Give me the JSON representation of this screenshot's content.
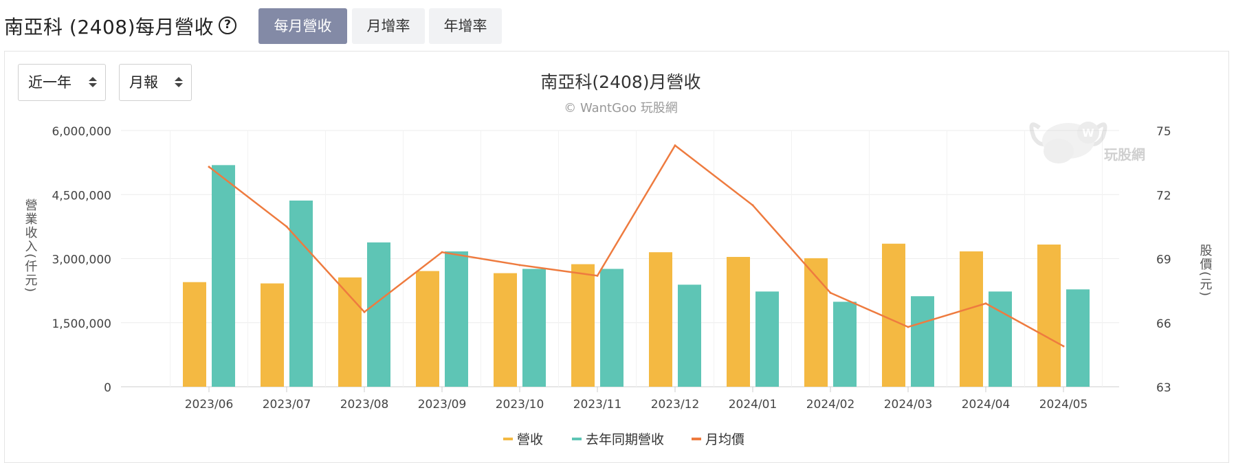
{
  "header": {
    "title": "南亞科 (2408)每月營收",
    "tabs": [
      {
        "label": "每月營收",
        "active": true
      },
      {
        "label": "月增率",
        "active": false
      },
      {
        "label": "年增率",
        "active": false
      }
    ]
  },
  "controls": {
    "period": "近一年",
    "report": "月報"
  },
  "watermark": "玩股網",
  "colors": {
    "revenue": "#f4b942",
    "last_year": "#5ec5b5",
    "price": "#ee7b3f",
    "tab_active": "#838aa6"
  },
  "chart_data": {
    "type": "bar",
    "title": "南亞科(2408)月營收",
    "subtitle": "© WantGoo 玩股網",
    "ylabel": "營業收入(仟元)",
    "y2label": "股價(元)",
    "ylim": [
      0,
      6000000
    ],
    "y2lim": [
      63,
      75
    ],
    "yticks": [
      "6,000,000",
      "4,500,000",
      "3,000,000",
      "1,500,000",
      "0"
    ],
    "y2ticks": [
      "75",
      "72",
      "69",
      "66",
      "63"
    ],
    "categories": [
      "2023/06",
      "2023/07",
      "2023/08",
      "2023/09",
      "2023/10",
      "2023/11",
      "2023/12",
      "2024/01",
      "2024/02",
      "2024/03",
      "2024/04",
      "2024/05"
    ],
    "series": [
      {
        "name": "營收",
        "type": "bar",
        "axis": "left",
        "values": [
          2450000,
          2420000,
          2560000,
          2710000,
          2660000,
          2870000,
          3150000,
          3040000,
          3010000,
          3350000,
          3170000,
          3330000
        ]
      },
      {
        "name": "去年同期營收",
        "type": "bar",
        "axis": "left",
        "values": [
          5190000,
          4360000,
          3380000,
          3170000,
          2760000,
          2760000,
          2390000,
          2230000,
          1990000,
          2120000,
          2230000,
          2280000
        ]
      },
      {
        "name": "月均價",
        "type": "line",
        "axis": "right",
        "values": [
          73.3,
          70.5,
          66.5,
          69.3,
          68.7,
          68.2,
          74.3,
          71.5,
          67.4,
          65.8,
          66.9,
          64.9
        ]
      }
    ],
    "legend": "bottom",
    "grid": true
  }
}
